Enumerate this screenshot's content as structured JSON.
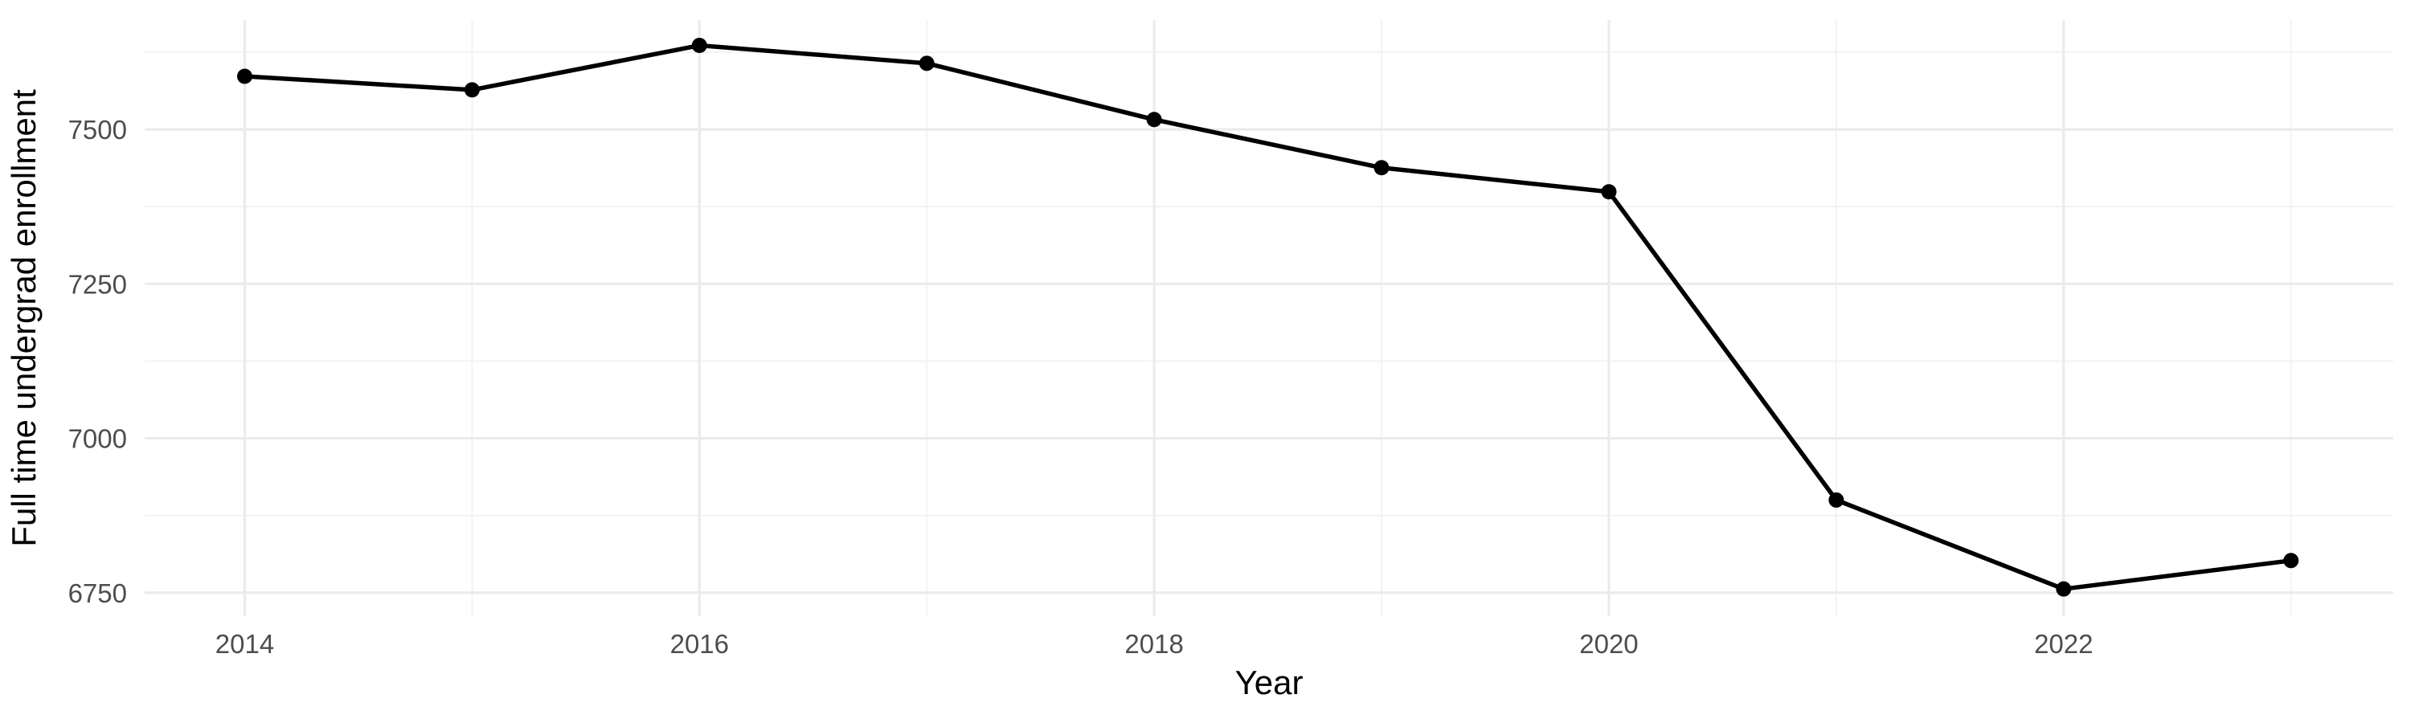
{
  "chart_data": {
    "type": "line",
    "title": "",
    "xlabel": "Year",
    "ylabel": "Full time undergrad enrollment",
    "x": [
      2014,
      2015,
      2016,
      2017,
      2018,
      2019,
      2020,
      2021,
      2022,
      2023
    ],
    "values": [
      7586,
      7564,
      7636,
      7607,
      7516,
      7438,
      7399,
      6900,
      6756,
      6802
    ],
    "series_name": "Full time undergrad enrollment",
    "xlim": [
      2013.56,
      2023.45
    ],
    "ylim": [
      6712,
      7677
    ],
    "x_major_ticks": [
      2014,
      2016,
      2018,
      2020,
      2022
    ],
    "x_major_tick_labels": [
      "2014",
      "2016",
      "2018",
      "2020",
      "2022"
    ],
    "x_minor_ticks": [
      2015,
      2017,
      2019,
      2021,
      2023
    ],
    "y_major_ticks": [
      7500,
      7250,
      7000,
      6750
    ],
    "y_major_tick_labels": [
      "7500",
      "7250",
      "7000",
      "6750"
    ],
    "y_minor_ticks": [
      7625,
      7375,
      7125,
      6875
    ],
    "grid": true,
    "legend": false,
    "colors": {
      "line": "#000000",
      "point": "#000000",
      "grid_major": "#EBEBEB",
      "grid_minor": "#F2F2F2",
      "tick_label": "#4D4D4D",
      "axis_title": "#000000",
      "background": "#FFFFFF"
    }
  }
}
